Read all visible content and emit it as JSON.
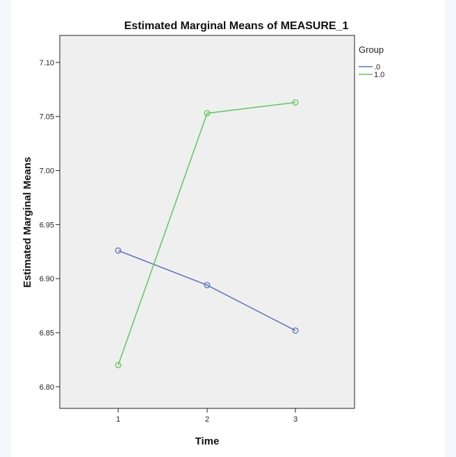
{
  "chart_data": {
    "type": "line",
    "title": "Estimated Marginal Means of MEASURE_1",
    "xlabel": "Time",
    "ylabel": "Estimated Marginal Means",
    "categories": [
      "1",
      "2",
      "3"
    ],
    "ylim": [
      6.78,
      7.125
    ],
    "yticks": [
      6.8,
      6.85,
      6.9,
      6.95,
      7.0,
      7.05,
      7.1
    ],
    "ytick_labels": [
      "6.80",
      "6.85",
      "6.90",
      "6.95",
      "7.00",
      "7.05",
      "7.10"
    ],
    "grid": false,
    "legend": {
      "title": "Group",
      "placement": "right"
    },
    "series": [
      {
        "name": ".0",
        "color": "#5a72c0",
        "values": [
          6.926,
          6.894,
          6.852
        ]
      },
      {
        "name": "1.0",
        "color": "#5dc85d",
        "values": [
          6.82,
          7.053,
          7.063
        ]
      }
    ],
    "plot_background": "#efefef"
  }
}
